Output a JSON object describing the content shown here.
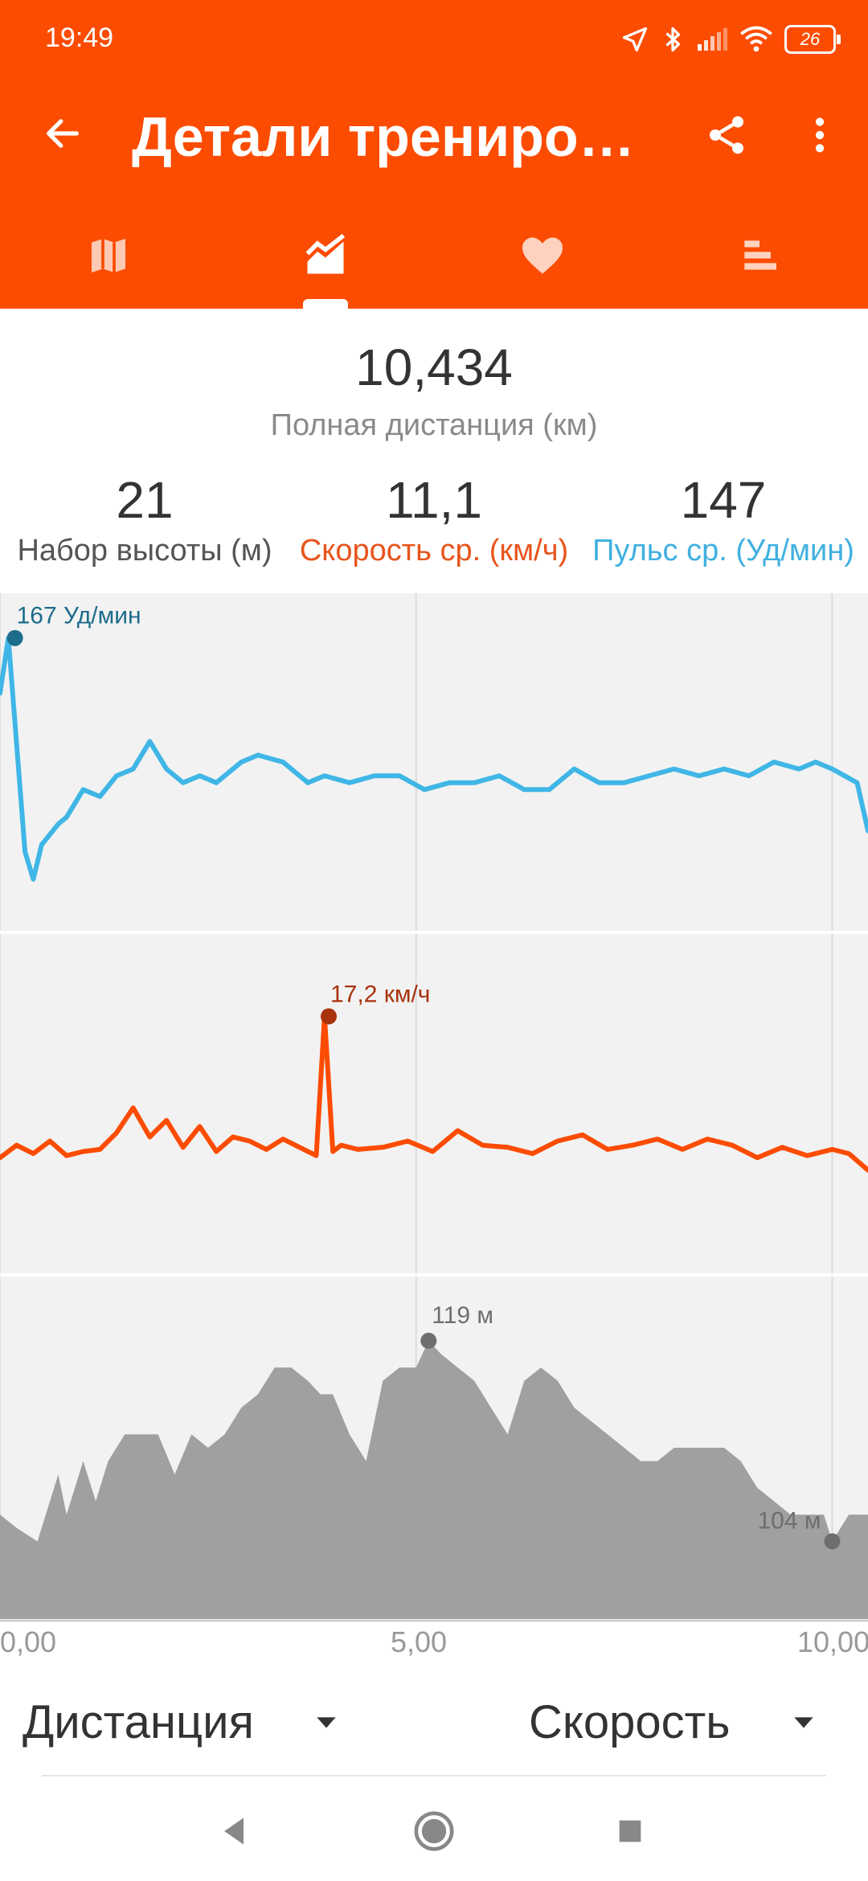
{
  "status_bar": {
    "time": "19:49",
    "battery": "26"
  },
  "app_bar": {
    "title": "Детали трениро…"
  },
  "tabs": [
    {
      "icon": "map-icon"
    },
    {
      "icon": "chart-icon",
      "selected": true
    },
    {
      "icon": "heart-icon"
    },
    {
      "icon": "splits-icon"
    }
  ],
  "summary": {
    "total_distance": {
      "value": "10,434",
      "label": "Полная дистанция (км)"
    },
    "stats": [
      {
        "value": "21",
        "label": "Набор высоты (м)",
        "color": "#555555"
      },
      {
        "value": "11,1",
        "label": "Скорость ср. (км/ч)",
        "color": "#e8541c"
      },
      {
        "value": "147",
        "label": "Пульс ср. (Уд/мин)",
        "color": "#3fb0e0"
      }
    ]
  },
  "chart_data": [
    {
      "type": "line",
      "name": "heart-rate",
      "color": "#3fb6e6",
      "x": [
        0.0,
        0.1,
        0.3,
        0.4,
        0.5,
        0.7,
        0.8,
        1.0,
        1.2,
        1.4,
        1.6,
        1.8,
        2.0,
        2.2,
        2.4,
        2.6,
        2.9,
        3.1,
        3.4,
        3.7,
        3.9,
        4.2,
        4.5,
        4.8,
        5.1,
        5.4,
        5.7,
        6.0,
        6.3,
        6.6,
        6.9,
        7.2,
        7.5,
        7.8,
        8.1,
        8.4,
        8.7,
        9.0,
        9.3,
        9.6,
        9.8,
        10.0,
        10.3,
        10.43
      ],
      "y": [
        159,
        167,
        136,
        132,
        137,
        140,
        141,
        145,
        144,
        147,
        148,
        152,
        148,
        146,
        147,
        146,
        149,
        150,
        149,
        146,
        147,
        146,
        147,
        147,
        145,
        146,
        146,
        147,
        145,
        145,
        148,
        146,
        146,
        147,
        148,
        147,
        148,
        147,
        149,
        148,
        149,
        148,
        146,
        139
      ],
      "max_label": "167 Уд/мин",
      "max_point": {
        "x": 0.18,
        "y": 167
      },
      "ylim": [
        128,
        170
      ]
    },
    {
      "type": "line",
      "name": "speed",
      "color": "#fc4c02",
      "x": [
        0.0,
        0.2,
        0.4,
        0.6,
        0.8,
        1.0,
        1.2,
        1.4,
        1.6,
        1.8,
        2.0,
        2.2,
        2.4,
        2.6,
        2.8,
        3.0,
        3.2,
        3.4,
        3.6,
        3.8,
        3.9,
        4.0,
        4.1,
        4.3,
        4.6,
        4.9,
        5.2,
        5.5,
        5.8,
        6.1,
        6.4,
        6.7,
        7.0,
        7.3,
        7.6,
        7.9,
        8.2,
        8.5,
        8.8,
        9.1,
        9.4,
        9.7,
        10.0,
        10.2,
        10.43
      ],
      "y": [
        10.4,
        11.0,
        10.6,
        11.2,
        10.5,
        10.7,
        10.8,
        11.6,
        12.8,
        11.4,
        12.2,
        10.9,
        11.9,
        10.7,
        11.4,
        11.2,
        10.8,
        11.3,
        10.9,
        10.5,
        17.2,
        10.7,
        11.0,
        10.8,
        10.9,
        11.2,
        10.7,
        11.7,
        11.0,
        10.9,
        10.6,
        11.2,
        11.5,
        10.8,
        11.0,
        11.3,
        10.8,
        11.3,
        11.0,
        10.4,
        10.9,
        10.5,
        10.8,
        10.6,
        9.8
      ],
      "max_label": "17,2 км/ч",
      "max_point": {
        "x": 3.95,
        "y": 17.2
      },
      "ylim": [
        6,
        20
      ]
    },
    {
      "type": "area",
      "name": "elevation",
      "color": "#a0a0a0",
      "x": [
        0.0,
        0.2,
        0.45,
        0.7,
        0.8,
        1.0,
        1.15,
        1.3,
        1.5,
        1.7,
        1.9,
        2.1,
        2.3,
        2.5,
        2.7,
        2.9,
        3.1,
        3.3,
        3.5,
        3.7,
        3.85,
        4.0,
        4.2,
        4.4,
        4.6,
        4.8,
        5.0,
        5.15,
        5.3,
        5.5,
        5.7,
        5.9,
        6.1,
        6.3,
        6.5,
        6.7,
        6.9,
        7.1,
        7.3,
        7.5,
        7.7,
        7.9,
        8.1,
        8.3,
        8.5,
        8.7,
        8.9,
        9.1,
        9.3,
        9.5,
        9.7,
        9.9,
        10.0,
        10.2,
        10.43
      ],
      "y": [
        106,
        105,
        104,
        109,
        106,
        110,
        107,
        110,
        112,
        112,
        112,
        109,
        112,
        111,
        112,
        114,
        115,
        117,
        117,
        116,
        115,
        115,
        112,
        110,
        116,
        117,
        117,
        119,
        118,
        117,
        116,
        114,
        112,
        116,
        117,
        116,
        114,
        113,
        112,
        111,
        110,
        110,
        111,
        111,
        111,
        111,
        110,
        108,
        107,
        106,
        106,
        106,
        104,
        106,
        106
      ],
      "labels": [
        {
          "text": "119 м",
          "x": 5.15,
          "y": 119
        },
        {
          "text": "104 м",
          "x": 10.0,
          "y": 104
        }
      ],
      "ylim": [
        100,
        122
      ]
    }
  ],
  "x_axis": {
    "ticks": [
      "0,00",
      "5,00",
      "10,00"
    ],
    "tick_values": [
      0,
      5,
      10
    ],
    "xlim": [
      0,
      10.43
    ]
  },
  "selectors": {
    "x_axis": "Дистанция",
    "y_axis": "Скорость"
  }
}
